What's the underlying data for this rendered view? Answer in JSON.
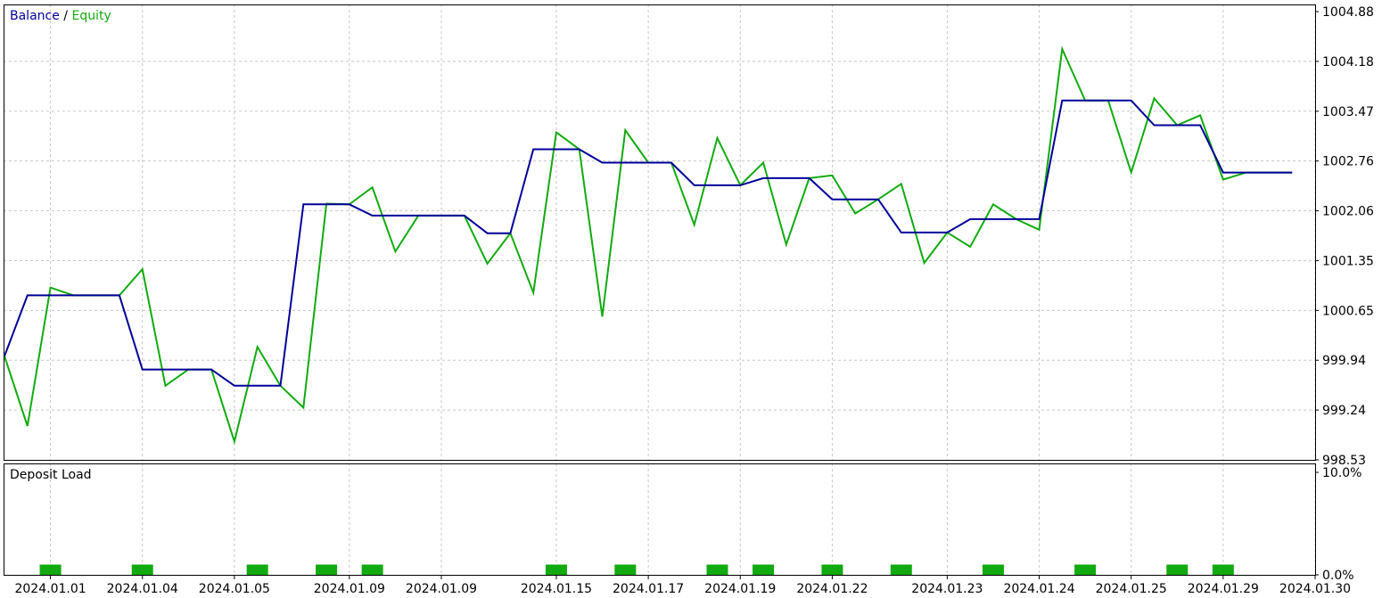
{
  "legend": {
    "balance_label": "Balance",
    "separator": "/",
    "equity_label": "Equity"
  },
  "colors": {
    "balance": "#000099",
    "equity": "#11aa11",
    "deposit_load": "#11aa11",
    "grid": "#c8c8c8",
    "frame": "#000000"
  },
  "deposit_pane": {
    "title": "Deposit Load",
    "y_labels": [
      "10.0%",
      "0.0%"
    ],
    "ylim": [
      0,
      10
    ],
    "bars": [
      {
        "x": 2,
        "value": 1
      },
      {
        "x": 6,
        "value": 1
      },
      {
        "x": 11,
        "value": 1
      },
      {
        "x": 14,
        "value": 1
      },
      {
        "x": 16,
        "value": 1
      },
      {
        "x": 24,
        "value": 1
      },
      {
        "x": 27,
        "value": 1
      },
      {
        "x": 31,
        "value": 1
      },
      {
        "x": 33,
        "value": 1
      },
      {
        "x": 36,
        "value": 1
      },
      {
        "x": 39,
        "value": 1
      },
      {
        "x": 43,
        "value": 1
      },
      {
        "x": 47,
        "value": 1
      },
      {
        "x": 51,
        "value": 1
      },
      {
        "x": 53,
        "value": 1
      }
    ]
  },
  "chart_data": {
    "type": "line",
    "title": "",
    "xlabel": "",
    "ylabel": "",
    "x_index_range": [
      0,
      57
    ],
    "x_tick_labels": [
      {
        "x": 2,
        "label": "2024.01.01"
      },
      {
        "x": 6,
        "label": "2024.01.04"
      },
      {
        "x": 10,
        "label": "2024.01.05"
      },
      {
        "x": 15,
        "label": "2024.01.09"
      },
      {
        "x": 19,
        "label": "2024.01.09"
      },
      {
        "x": 24,
        "label": "2024.01.15"
      },
      {
        "x": 28,
        "label": "2024.01.17"
      },
      {
        "x": 32,
        "label": "2024.01.19"
      },
      {
        "x": 36,
        "label": "2024.01.22"
      },
      {
        "x": 41,
        "label": "2024.01.23"
      },
      {
        "x": 45,
        "label": "2024.01.24"
      },
      {
        "x": 49,
        "label": "2024.01.25"
      },
      {
        "x": 53,
        "label": "2024.01.29"
      },
      {
        "x": 57,
        "label": "2024.01.30"
      }
    ],
    "y_tick_labels": [
      "1004.88",
      "1004.18",
      "1003.47",
      "1002.76",
      "1002.06",
      "1001.35",
      "1000.65",
      "999.94",
      "999.24",
      "998.53"
    ],
    "ylim": [
      998.53,
      1004.88
    ],
    "grid": true,
    "series": [
      {
        "name": "Balance",
        "x": [
          0,
          1,
          2,
          3,
          4,
          5,
          6,
          7,
          8,
          9,
          10,
          11,
          12,
          13,
          14,
          15,
          16,
          17,
          18,
          19,
          20,
          21,
          22,
          23,
          24,
          25,
          26,
          27,
          28,
          29,
          30,
          31,
          32,
          33,
          34,
          35,
          36,
          37,
          38,
          39,
          40,
          41,
          42,
          43,
          44,
          45,
          46,
          47,
          48,
          49,
          50,
          51,
          52,
          53,
          54,
          55,
          56
        ],
        "values": [
          1000.0,
          1000.86,
          1000.86,
          1000.86,
          1000.86,
          1000.86,
          999.81,
          999.81,
          999.81,
          999.81,
          999.58,
          999.58,
          999.58,
          1002.15,
          1002.15,
          1002.15,
          1001.99,
          1001.99,
          1001.99,
          1001.99,
          1001.99,
          1001.74,
          1001.74,
          1002.93,
          1002.93,
          1002.93,
          1002.74,
          1002.74,
          1002.74,
          1002.74,
          1002.42,
          1002.42,
          1002.42,
          1002.52,
          1002.52,
          1002.52,
          1002.22,
          1002.22,
          1002.22,
          1001.75,
          1001.75,
          1001.75,
          1001.94,
          1001.94,
          1001.94,
          1001.94,
          1003.62,
          1003.62,
          1003.62,
          1003.62,
          1003.27,
          1003.27,
          1003.27,
          1002.6,
          1002.6,
          1002.6,
          1002.6
        ]
      },
      {
        "name": "Equity",
        "x": [
          0,
          1,
          2,
          3,
          4,
          5,
          6,
          7,
          8,
          9,
          10,
          11,
          12,
          13,
          14,
          15,
          16,
          17,
          18,
          19,
          20,
          21,
          22,
          23,
          24,
          25,
          26,
          27,
          28,
          29,
          30,
          31,
          32,
          33,
          34,
          35,
          36,
          37,
          38,
          39,
          40,
          41,
          42,
          43,
          44,
          45,
          46,
          47,
          48,
          49,
          50,
          51,
          52,
          53,
          54,
          55,
          56
        ],
        "values": [
          1000.0,
          999.01,
          1000.97,
          1000.86,
          1000.86,
          1000.86,
          1001.23,
          999.58,
          999.81,
          999.81,
          998.79,
          1000.13,
          999.58,
          999.27,
          1002.16,
          1002.15,
          1002.39,
          1001.48,
          1001.99,
          1001.99,
          1001.99,
          1001.31,
          1001.74,
          1000.9,
          1003.17,
          1002.93,
          1000.56,
          1003.2,
          1002.74,
          1002.74,
          1001.86,
          1003.09,
          1002.42,
          1002.74,
          1001.58,
          1002.52,
          1002.56,
          1002.02,
          1002.22,
          1002.44,
          1001.32,
          1001.75,
          1001.55,
          1002.15,
          1001.94,
          1001.79,
          1004.35,
          1003.62,
          1003.62,
          1002.6,
          1003.65,
          1003.27,
          1003.41,
          1002.5,
          1002.6,
          1002.6,
          1002.6
        ]
      }
    ]
  }
}
